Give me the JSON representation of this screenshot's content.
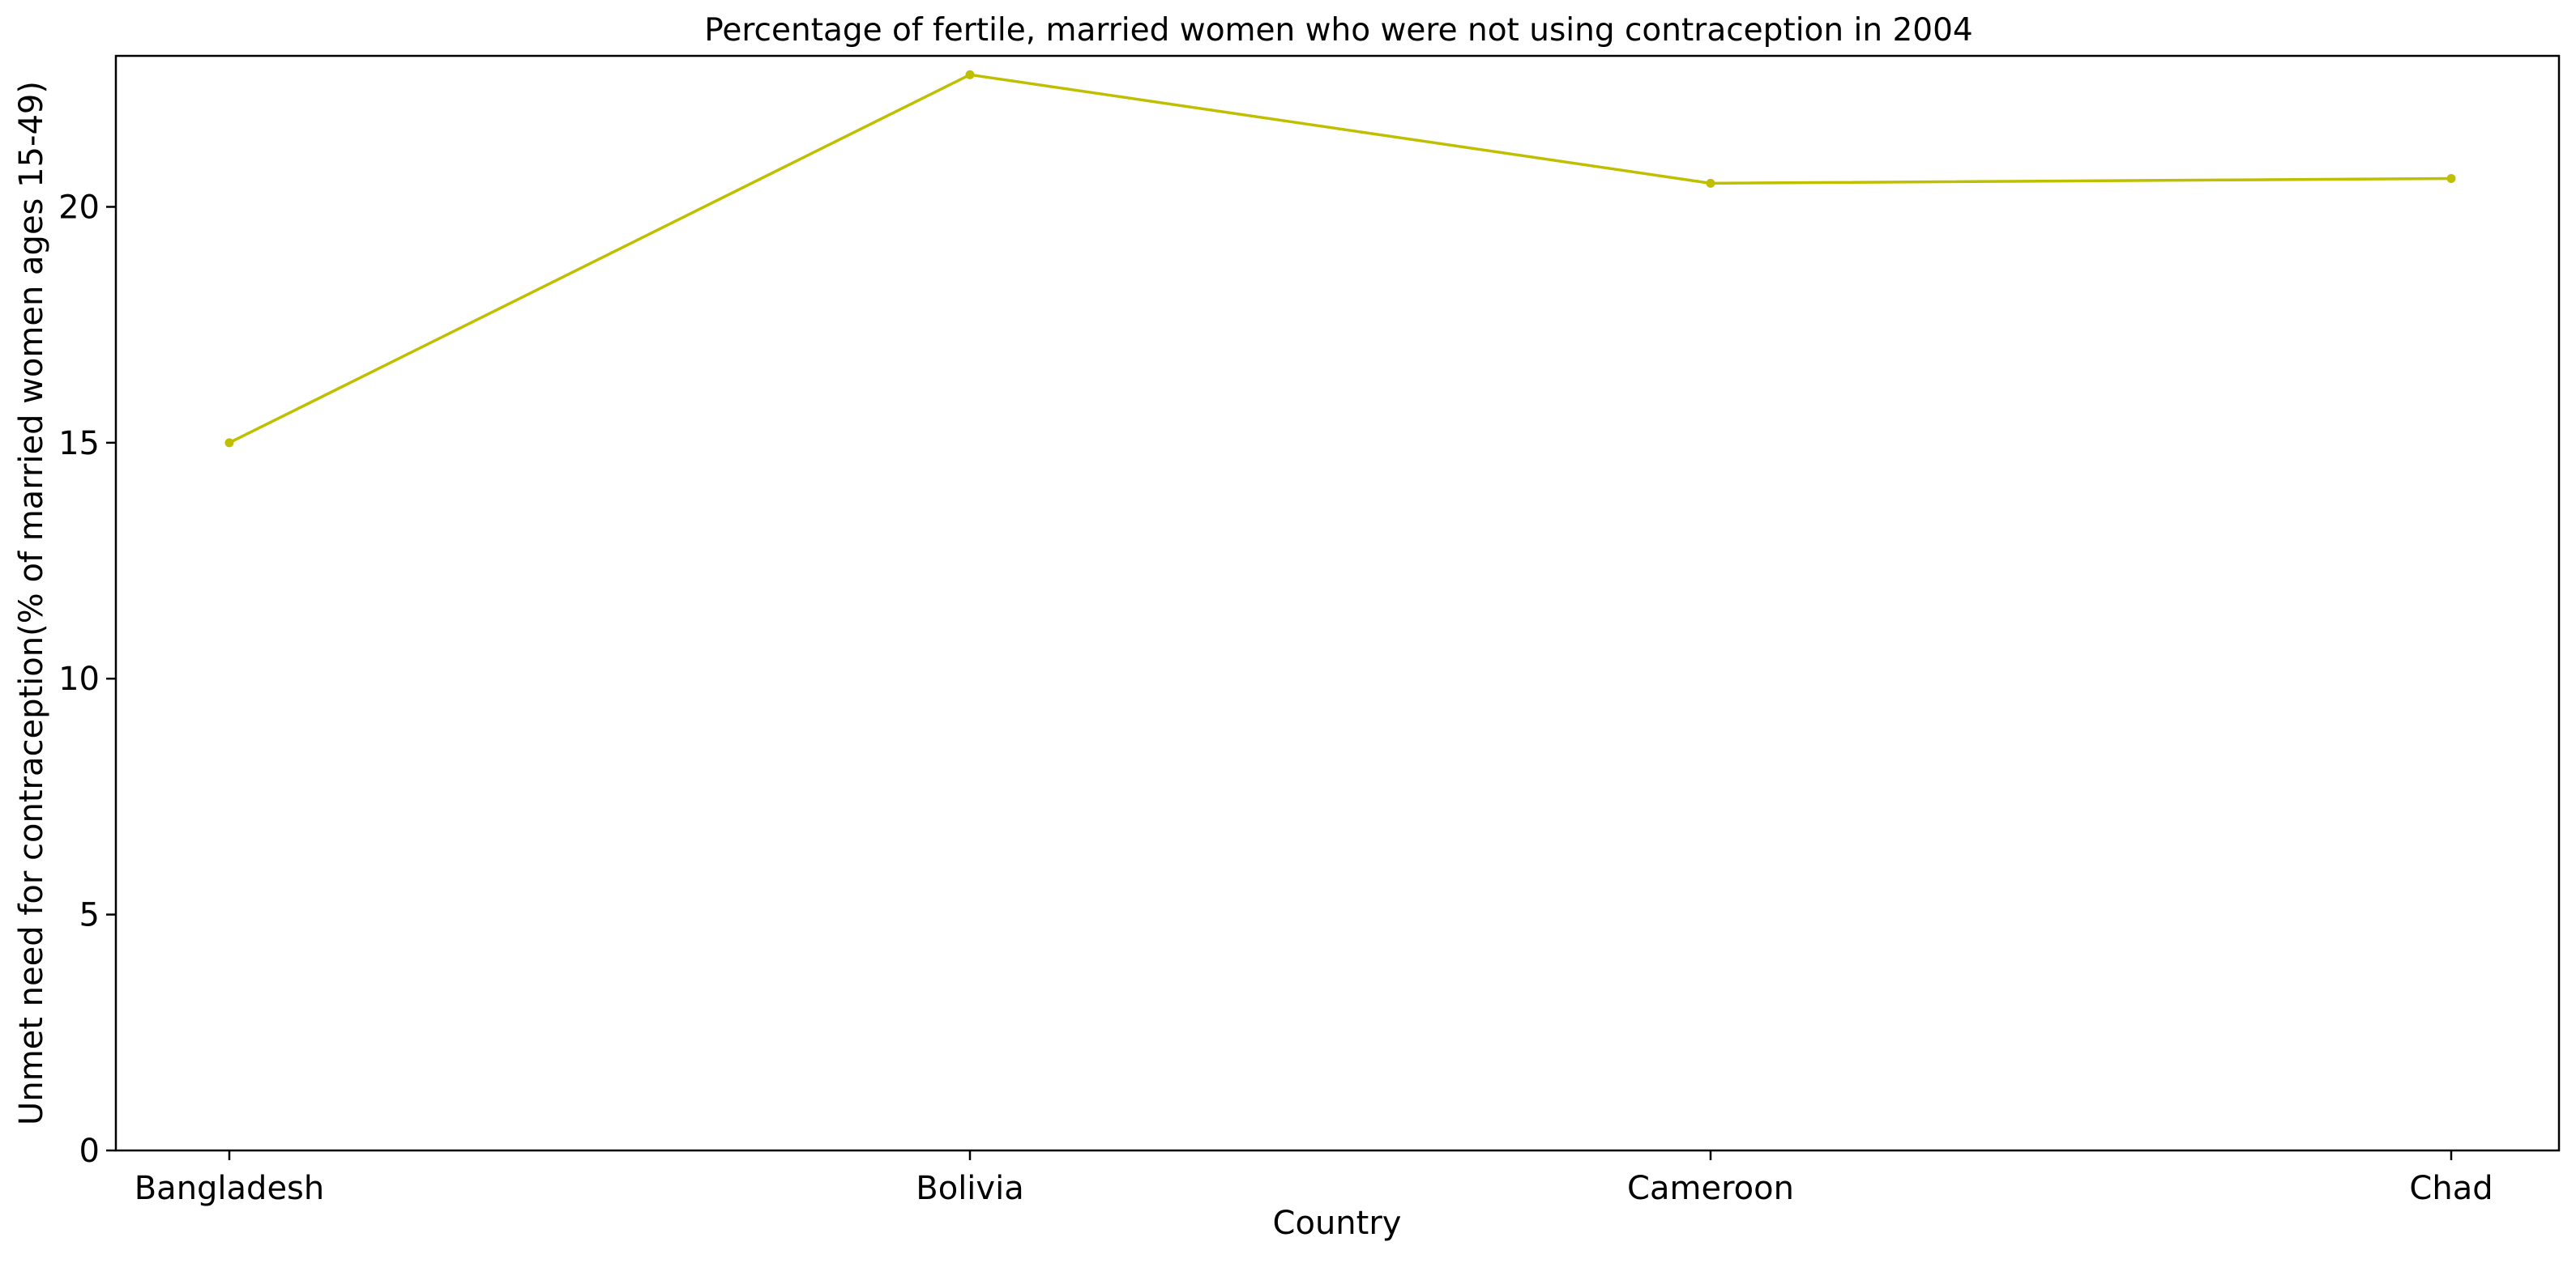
{
  "chart_data": {
    "type": "line",
    "title": "Percentage of fertile, married women who were not using contraception in 2004",
    "xlabel": "Country",
    "ylabel": "Unmet need for contraception(% of married women ages 15-49)",
    "categories": [
      "Bangladesh",
      "Bolivia",
      "Cameroon",
      "Chad"
    ],
    "series": [
      {
        "values": [
          15.0,
          22.8,
          20.5,
          20.6
        ],
        "color": "#bfbf00"
      }
    ],
    "ylim": [
      0,
      23.2
    ],
    "yticks": [
      0,
      5,
      10,
      15,
      20
    ],
    "grid": false,
    "legend": "none"
  }
}
